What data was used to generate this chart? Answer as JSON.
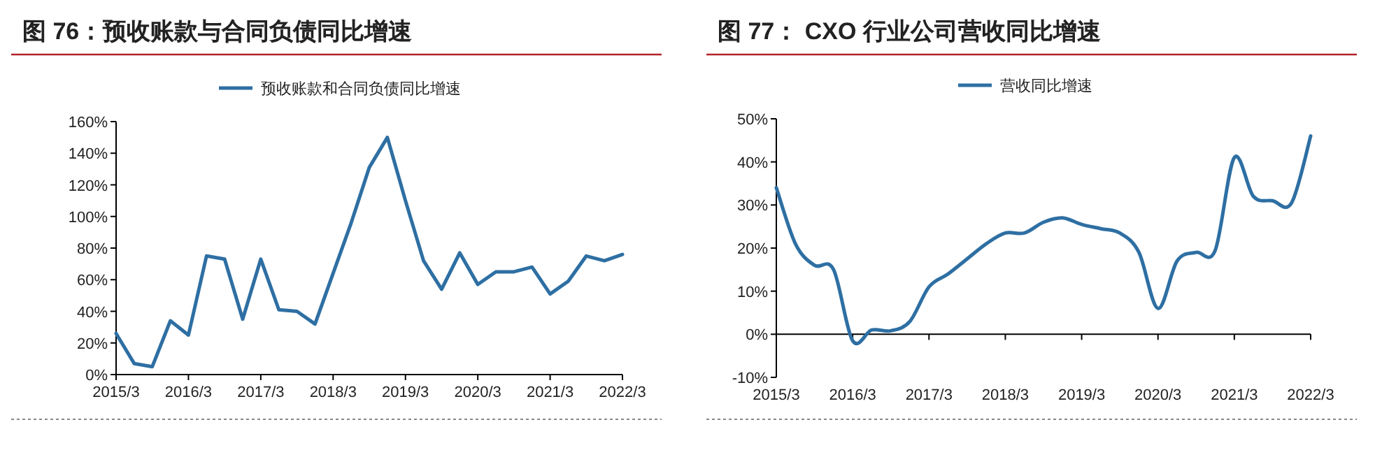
{
  "chart_data": [
    {
      "type": "line",
      "title": "图 76：预收账款与合同负债同比增速",
      "categories": [
        "2015/3",
        null,
        null,
        null,
        "2016/3",
        null,
        null,
        null,
        "2017/3",
        null,
        null,
        null,
        "2018/3",
        null,
        null,
        null,
        "2019/3",
        null,
        null,
        null,
        "2020/3",
        null,
        null,
        null,
        "2021/3",
        null,
        null,
        null,
        "2022/3"
      ],
      "series": [
        {
          "name": "预收账款和合同负债同比增速",
          "color": "#2e6fa3",
          "values": [
            26,
            7,
            5,
            34,
            25,
            75,
            73,
            35,
            73,
            41,
            40,
            32,
            64,
            96,
            131,
            150,
            110,
            72,
            54,
            77,
            57,
            65,
            65,
            68,
            51,
            59,
            75,
            72,
            76
          ]
        }
      ],
      "ylim": [
        0,
        160
      ],
      "yticks": [
        {
          "value": 0,
          "label": "0%"
        },
        {
          "value": 20,
          "label": "20%"
        },
        {
          "value": 40,
          "label": "40%"
        },
        {
          "value": 60,
          "label": "60%"
        },
        {
          "value": 80,
          "label": "80%"
        },
        {
          "value": 100,
          "label": "100%"
        },
        {
          "value": 120,
          "label": "120%"
        },
        {
          "value": 140,
          "label": "140%"
        },
        {
          "value": 160,
          "label": "160%"
        }
      ],
      "grid": false,
      "legend": "top",
      "marker": "none",
      "line_style": "solid"
    },
    {
      "type": "line",
      "title": "图 77：  CXO 行业公司营收同比增速",
      "categories": [
        "2015/3",
        null,
        null,
        null,
        "2016/3",
        null,
        null,
        null,
        "2017/3",
        null,
        null,
        null,
        "2018/3",
        null,
        null,
        null,
        "2019/3",
        null,
        null,
        null,
        "2020/3",
        null,
        null,
        null,
        "2021/3",
        null,
        null,
        null,
        "2022/3"
      ],
      "series": [
        {
          "name": "营收同比增速",
          "color": "#2e6fa3",
          "values": [
            34,
            21,
            16,
            15,
            -1.5,
            1,
            0.8,
            3,
            11,
            14,
            17.5,
            21,
            23.5,
            23.5,
            26,
            27,
            25.5,
            24.5,
            23.5,
            19,
            6,
            17,
            19,
            19.5,
            41,
            32,
            31,
            30.5,
            46
          ]
        }
      ],
      "ylim": [
        -10,
        50
      ],
      "yticks": [
        {
          "value": -10,
          "label": "-10%"
        },
        {
          "value": 0,
          "label": "0%"
        },
        {
          "value": 10,
          "label": "10%"
        },
        {
          "value": 20,
          "label": "20%"
        },
        {
          "value": 30,
          "label": "30%"
        },
        {
          "value": 40,
          "label": "40%"
        },
        {
          "value": 50,
          "label": "50%"
        }
      ],
      "ref_lines": [
        {
          "axis": "y",
          "value": 0,
          "color": "#000000"
        }
      ],
      "grid": false,
      "legend": "top left",
      "marker": "none",
      "line_style": "solid"
    }
  ]
}
